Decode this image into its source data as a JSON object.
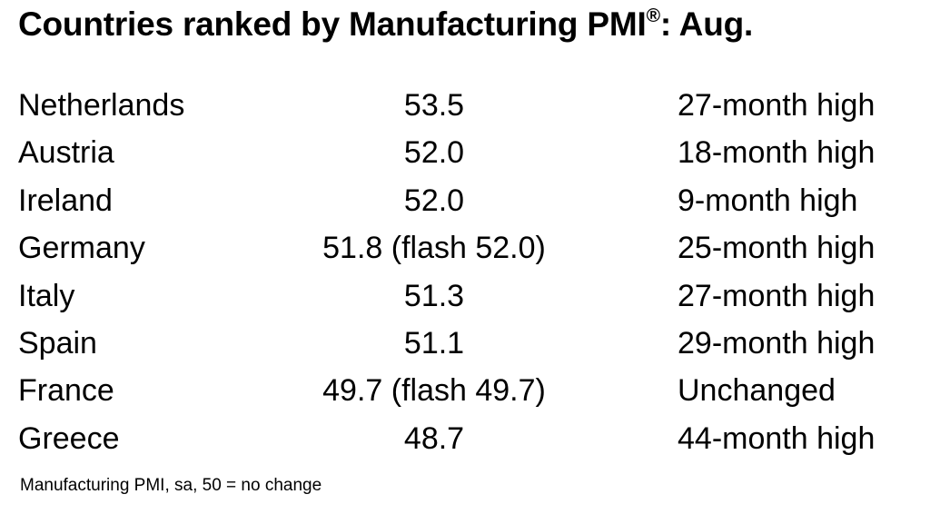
{
  "title": {
    "text": "Countries ranked by Manufacturing PMI",
    "reg": "®",
    "suffix": ": Aug."
  },
  "rows": [
    {
      "country": "Netherlands",
      "value": "53.5",
      "note": "27-month high"
    },
    {
      "country": "Austria",
      "value": "52.0",
      "note": "18-month high"
    },
    {
      "country": "Ireland",
      "value": "52.0",
      "note": "9-month high"
    },
    {
      "country": "Germany",
      "value": "51.8 (flash 52.0)",
      "note": "25-month high"
    },
    {
      "country": "Italy",
      "value": "51.3",
      "note": "27-month high"
    },
    {
      "country": "Spain",
      "value": "51.1",
      "note": "29-month high"
    },
    {
      "country": "France",
      "value": "49.7 (flash 49.7)",
      "note": "Unchanged"
    },
    {
      "country": "Greece",
      "value": "48.7",
      "note": "44-month high"
    }
  ],
  "footnote": "Manufacturing PMI, sa, 50 = no change"
}
